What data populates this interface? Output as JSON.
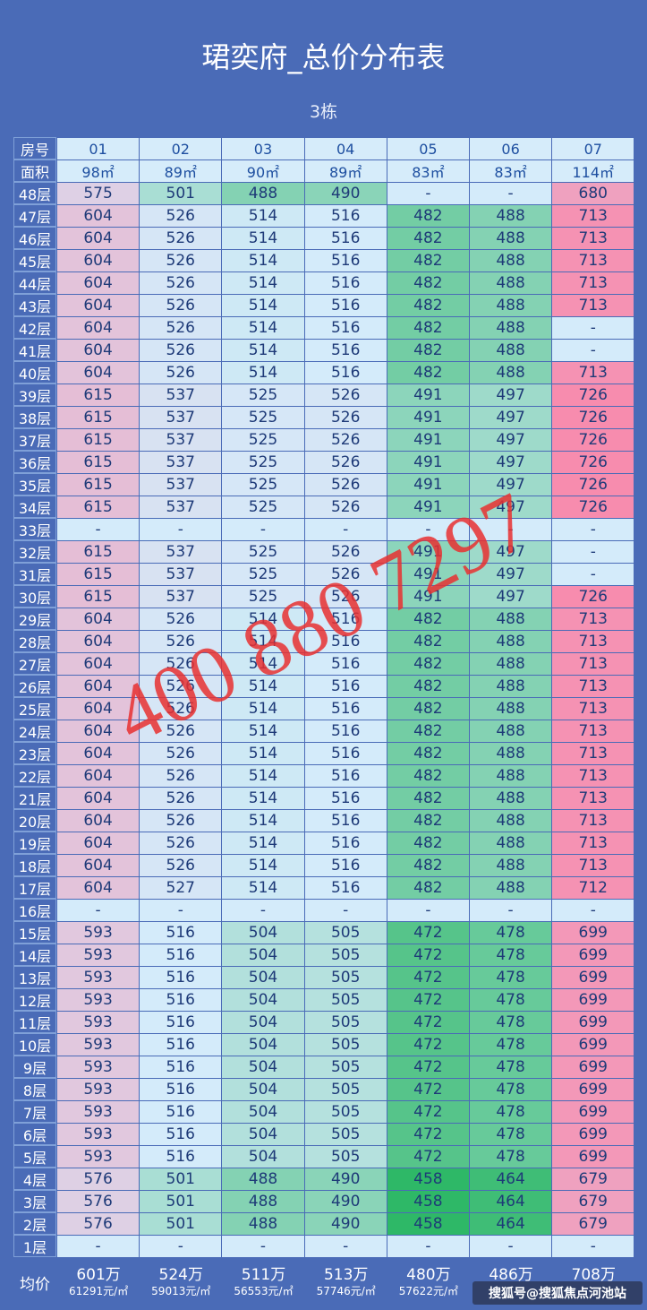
{
  "header": {
    "title": "珺奕府_总价分布表",
    "subtitle": "3栋"
  },
  "table": {
    "unit_label": "房号",
    "units": [
      "01",
      "02",
      "03",
      "04",
      "05",
      "06",
      "07"
    ],
    "area_label": "面积",
    "areas": [
      "98㎡",
      "89㎡",
      "90㎡",
      "89㎡",
      "83㎡",
      "83㎡",
      "114㎡"
    ],
    "rows": [
      {
        "floor": "48层",
        "cells": [
          575,
          501,
          488,
          490,
          "-",
          "-",
          680
        ]
      },
      {
        "floor": "47层",
        "cells": [
          604,
          526,
          514,
          516,
          482,
          488,
          713
        ]
      },
      {
        "floor": "46层",
        "cells": [
          604,
          526,
          514,
          516,
          482,
          488,
          713
        ]
      },
      {
        "floor": "45层",
        "cells": [
          604,
          526,
          514,
          516,
          482,
          488,
          713
        ]
      },
      {
        "floor": "44层",
        "cells": [
          604,
          526,
          514,
          516,
          482,
          488,
          713
        ]
      },
      {
        "floor": "43层",
        "cells": [
          604,
          526,
          514,
          516,
          482,
          488,
          713
        ]
      },
      {
        "floor": "42层",
        "cells": [
          604,
          526,
          514,
          516,
          482,
          488,
          "-"
        ]
      },
      {
        "floor": "41层",
        "cells": [
          604,
          526,
          514,
          516,
          482,
          488,
          "-"
        ]
      },
      {
        "floor": "40层",
        "cells": [
          604,
          526,
          514,
          516,
          482,
          488,
          713
        ]
      },
      {
        "floor": "39层",
        "cells": [
          615,
          537,
          525,
          526,
          491,
          497,
          726
        ]
      },
      {
        "floor": "38层",
        "cells": [
          615,
          537,
          525,
          526,
          491,
          497,
          726
        ]
      },
      {
        "floor": "37层",
        "cells": [
          615,
          537,
          525,
          526,
          491,
          497,
          726
        ]
      },
      {
        "floor": "36层",
        "cells": [
          615,
          537,
          525,
          526,
          491,
          497,
          726
        ]
      },
      {
        "floor": "35层",
        "cells": [
          615,
          537,
          525,
          526,
          491,
          497,
          726
        ]
      },
      {
        "floor": "34层",
        "cells": [
          615,
          537,
          525,
          526,
          491,
          497,
          726
        ]
      },
      {
        "floor": "33层",
        "cells": [
          "-",
          "-",
          "-",
          "-",
          "-",
          "-",
          "-"
        ]
      },
      {
        "floor": "32层",
        "cells": [
          615,
          537,
          525,
          526,
          491,
          497,
          "-"
        ]
      },
      {
        "floor": "31层",
        "cells": [
          615,
          537,
          525,
          526,
          491,
          497,
          "-"
        ]
      },
      {
        "floor": "30层",
        "cells": [
          615,
          537,
          525,
          526,
          491,
          497,
          726
        ]
      },
      {
        "floor": "29层",
        "cells": [
          604,
          526,
          514,
          516,
          482,
          488,
          713
        ]
      },
      {
        "floor": "28层",
        "cells": [
          604,
          526,
          514,
          516,
          482,
          488,
          713
        ]
      },
      {
        "floor": "27层",
        "cells": [
          604,
          526,
          514,
          516,
          482,
          488,
          713
        ]
      },
      {
        "floor": "26层",
        "cells": [
          604,
          526,
          514,
          516,
          482,
          488,
          713
        ]
      },
      {
        "floor": "25层",
        "cells": [
          604,
          526,
          514,
          516,
          482,
          488,
          713
        ]
      },
      {
        "floor": "24层",
        "cells": [
          604,
          526,
          514,
          516,
          482,
          488,
          713
        ]
      },
      {
        "floor": "23层",
        "cells": [
          604,
          526,
          514,
          516,
          482,
          488,
          713
        ]
      },
      {
        "floor": "22层",
        "cells": [
          604,
          526,
          514,
          516,
          482,
          488,
          713
        ]
      },
      {
        "floor": "21层",
        "cells": [
          604,
          526,
          514,
          516,
          482,
          488,
          713
        ]
      },
      {
        "floor": "20层",
        "cells": [
          604,
          526,
          514,
          516,
          482,
          488,
          713
        ]
      },
      {
        "floor": "19层",
        "cells": [
          604,
          526,
          514,
          516,
          482,
          488,
          713
        ]
      },
      {
        "floor": "18层",
        "cells": [
          604,
          526,
          514,
          516,
          482,
          488,
          713
        ]
      },
      {
        "floor": "17层",
        "cells": [
          604,
          527,
          514,
          516,
          482,
          488,
          712
        ]
      },
      {
        "floor": "16层",
        "cells": [
          "-",
          "-",
          "-",
          "-",
          "-",
          "-",
          "-"
        ]
      },
      {
        "floor": "15层",
        "cells": [
          593,
          516,
          504,
          505,
          472,
          478,
          699
        ]
      },
      {
        "floor": "14层",
        "cells": [
          593,
          516,
          504,
          505,
          472,
          478,
          699
        ]
      },
      {
        "floor": "13层",
        "cells": [
          593,
          516,
          504,
          505,
          472,
          478,
          699
        ]
      },
      {
        "floor": "12层",
        "cells": [
          593,
          516,
          504,
          505,
          472,
          478,
          699
        ]
      },
      {
        "floor": "11层",
        "cells": [
          593,
          516,
          504,
          505,
          472,
          478,
          699
        ]
      },
      {
        "floor": "10层",
        "cells": [
          593,
          516,
          504,
          505,
          472,
          478,
          699
        ]
      },
      {
        "floor": "9层",
        "cells": [
          593,
          516,
          504,
          505,
          472,
          478,
          699
        ]
      },
      {
        "floor": "8层",
        "cells": [
          593,
          516,
          504,
          505,
          472,
          478,
          699
        ]
      },
      {
        "floor": "7层",
        "cells": [
          593,
          516,
          504,
          505,
          472,
          478,
          699
        ]
      },
      {
        "floor": "6层",
        "cells": [
          593,
          516,
          504,
          505,
          472,
          478,
          699
        ]
      },
      {
        "floor": "5层",
        "cells": [
          593,
          516,
          504,
          505,
          472,
          478,
          699
        ]
      },
      {
        "floor": "4层",
        "cells": [
          576,
          501,
          488,
          490,
          458,
          464,
          679
        ]
      },
      {
        "floor": "3层",
        "cells": [
          576,
          501,
          488,
          490,
          458,
          464,
          679
        ]
      },
      {
        "floor": "2层",
        "cells": [
          576,
          501,
          488,
          490,
          458,
          464,
          679
        ]
      },
      {
        "floor": "1层",
        "cells": [
          "-",
          "-",
          "-",
          "-",
          "-",
          "-",
          "-"
        ]
      }
    ],
    "summary": {
      "label": "均价",
      "totals": [
        "601万",
        "524万",
        "511万",
        "513万",
        "480万",
        "486万",
        "708万"
      ],
      "unit_prices": [
        "61291元/㎡",
        "59013元/㎡",
        "56553元/㎡",
        "57746元/㎡",
        "57622元/㎡",
        null,
        null
      ]
    },
    "color_scale": {
      "low": "#2eb867",
      "mid": "#d4ebfa",
      "high": "#f78cae"
    }
  },
  "watermark": "400 880 7297",
  "source": "搜狐号@搜狐焦点河池站"
}
